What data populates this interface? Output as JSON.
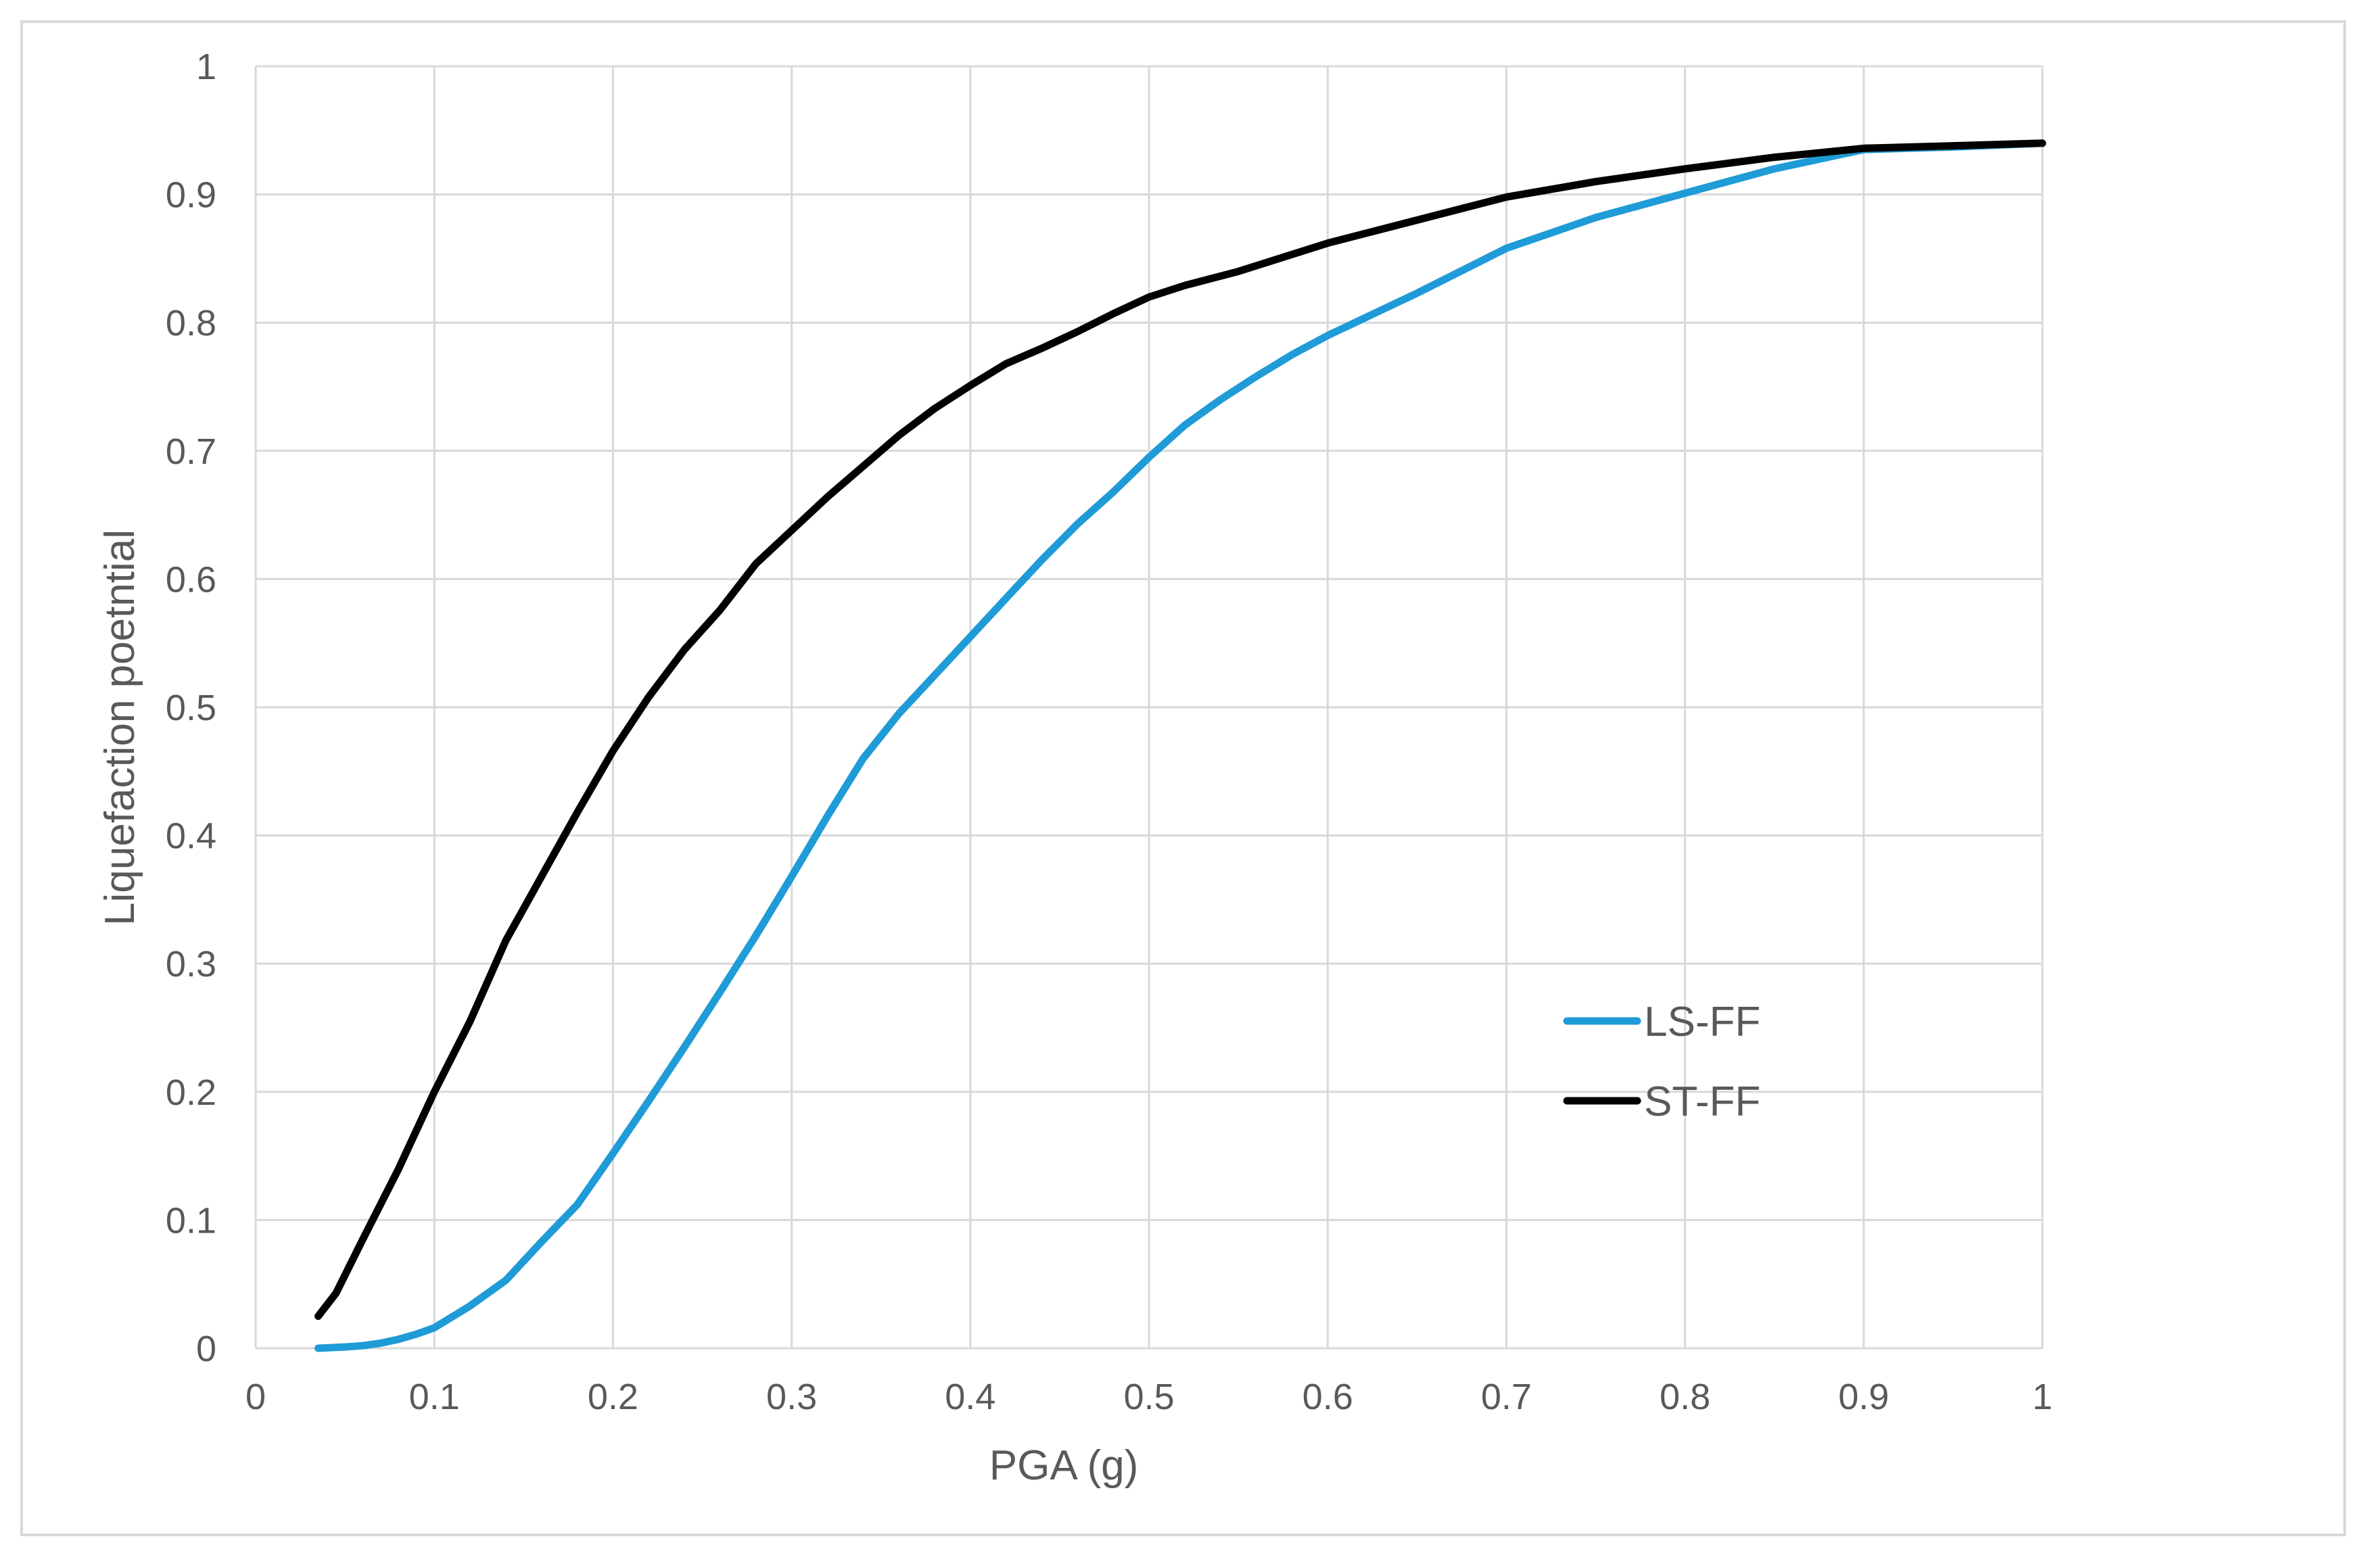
{
  "chart_data": {
    "type": "line",
    "title": "",
    "xlabel": "PGA (g)",
    "ylabel": "Liquefaction poetntial",
    "xlim": [
      0,
      1
    ],
    "ylim": [
      0,
      1
    ],
    "xticks": [
      0,
      0.1,
      0.2,
      0.3,
      0.4,
      0.5,
      0.6,
      0.7,
      0.8,
      0.9,
      1
    ],
    "yticks": [
      0,
      0.1,
      0.2,
      0.3,
      0.4,
      0.5,
      0.6,
      0.7,
      0.8,
      0.9,
      1
    ],
    "xtick_labels": [
      "0",
      "0.1",
      "0.2",
      "0.3",
      "0.4",
      "0.5",
      "0.6",
      "0.7",
      "0.8",
      "0.9",
      "1"
    ],
    "ytick_labels": [
      "0",
      "0.1",
      "0.2",
      "0.3",
      "0.4",
      "0.5",
      "0.6",
      "0.7",
      "0.8",
      "0.9",
      "1"
    ],
    "grid": true,
    "legend_position": "lower-right",
    "series": [
      {
        "name": "LS-FF",
        "color": "#1f9bd7",
        "x": [
          0.035,
          0.05,
          0.06,
          0.07,
          0.08,
          0.09,
          0.1,
          0.12,
          0.14,
          0.16,
          0.18,
          0.2,
          0.22,
          0.24,
          0.26,
          0.28,
          0.3,
          0.32,
          0.34,
          0.36,
          0.38,
          0.4,
          0.42,
          0.44,
          0.46,
          0.48,
          0.5,
          0.52,
          0.54,
          0.56,
          0.58,
          0.6,
          0.65,
          0.7,
          0.75,
          0.8,
          0.85,
          0.89,
          0.9,
          0.95,
          1.0
        ],
        "y": [
          0.0,
          0.001,
          0.002,
          0.004,
          0.007,
          0.011,
          0.016,
          0.033,
          0.053,
          0.083,
          0.112,
          0.152,
          0.193,
          0.235,
          0.278,
          0.322,
          0.368,
          0.415,
          0.46,
          0.495,
          0.525,
          0.555,
          0.585,
          0.615,
          0.643,
          0.668,
          0.695,
          0.72,
          0.74,
          0.758,
          0.775,
          0.79,
          0.823,
          0.858,
          0.882,
          0.901,
          0.92,
          0.932,
          0.935,
          0.937,
          0.94
        ]
      },
      {
        "name": "ST-FF",
        "color": "#000000",
        "x": [
          0.035,
          0.045,
          0.06,
          0.08,
          0.1,
          0.12,
          0.14,
          0.16,
          0.18,
          0.2,
          0.22,
          0.24,
          0.26,
          0.28,
          0.3,
          0.32,
          0.34,
          0.36,
          0.38,
          0.4,
          0.42,
          0.44,
          0.46,
          0.48,
          0.5,
          0.52,
          0.55,
          0.6,
          0.65,
          0.7,
          0.75,
          0.8,
          0.85,
          0.9,
          0.95,
          1.0
        ],
        "y": [
          0.025,
          0.043,
          0.085,
          0.14,
          0.2,
          0.255,
          0.318,
          0.368,
          0.418,
          0.466,
          0.508,
          0.545,
          0.576,
          0.612,
          0.638,
          0.664,
          0.688,
          0.712,
          0.733,
          0.751,
          0.768,
          0.78,
          0.793,
          0.807,
          0.82,
          0.829,
          0.84,
          0.862,
          0.88,
          0.898,
          0.91,
          0.92,
          0.929,
          0.936,
          0.938,
          0.94
        ]
      }
    ]
  }
}
